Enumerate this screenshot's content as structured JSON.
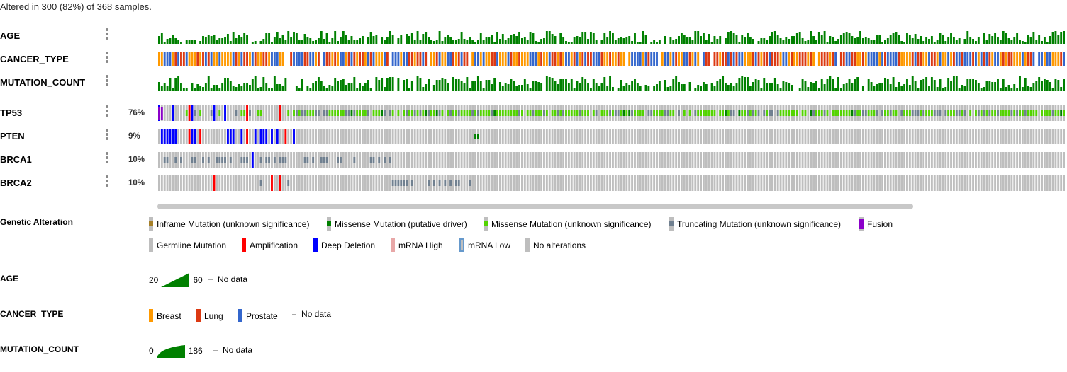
{
  "summary": "Altered in 300 (82%) of 368 samples.",
  "clinical_tracks": [
    {
      "label": "AGE"
    },
    {
      "label": "CANCER_TYPE"
    },
    {
      "label": "MUTATION_COUNT"
    }
  ],
  "genes": [
    {
      "label": "TP53",
      "pct": "76%"
    },
    {
      "label": "PTEN",
      "pct": "9%"
    },
    {
      "label": "BRCA1",
      "pct": "10%"
    },
    {
      "label": "BRCA2",
      "pct": "10%"
    }
  ],
  "legend": {
    "genetic_alteration": {
      "title": "Genetic Alteration",
      "items": [
        {
          "label": "Inframe Mutation (unknown significance)",
          "color": "#a68028",
          "kind": "mid"
        },
        {
          "label": "Missense Mutation (putative driver)",
          "color": "#008000",
          "kind": "mid"
        },
        {
          "label": "Missense Mutation (unknown significance)",
          "color": "#53d400",
          "kind": "mid"
        },
        {
          "label": "Truncating Mutation (unknown significance)",
          "color": "#708090",
          "kind": "mid"
        },
        {
          "label": "Fusion",
          "color": "#8b00c9",
          "kind": "full"
        },
        {
          "label": "Germline Mutation",
          "color": "#bebebe",
          "kind": "full"
        },
        {
          "label": "Amplification",
          "color": "#ff0000",
          "kind": "full"
        },
        {
          "label": "Deep Deletion",
          "color": "#0000ff",
          "kind": "full"
        },
        {
          "label": "mRNA High",
          "color": "#e8a7a7",
          "kind": "full"
        },
        {
          "label": "mRNA Low",
          "color": "#6699cc",
          "kind": "outline"
        },
        {
          "label": "No alterations",
          "color": "#bebebe",
          "kind": "full"
        }
      ]
    },
    "age": {
      "title": "AGE",
      "min": "20",
      "max": "60",
      "nodata": "No data",
      "color": "#008000"
    },
    "cancer_type": {
      "title": "CANCER_TYPE",
      "items": [
        {
          "label": "Breast",
          "color": "#ff9900"
        },
        {
          "label": "Lung",
          "color": "#dc3912"
        },
        {
          "label": "Prostate",
          "color": "#3366cc"
        }
      ],
      "nodata": "No data"
    },
    "mutation_count": {
      "title": "MUTATION_COUNT",
      "min": "0",
      "max": "186",
      "nodata": "No data",
      "color": "#008000"
    }
  },
  "colors": {
    "no_alteration": "#bebebe",
    "age_bar": "#008000",
    "mutcount_bar": "#008000",
    "scrollbar": "#c8c8c8"
  },
  "sample_count": 368
}
